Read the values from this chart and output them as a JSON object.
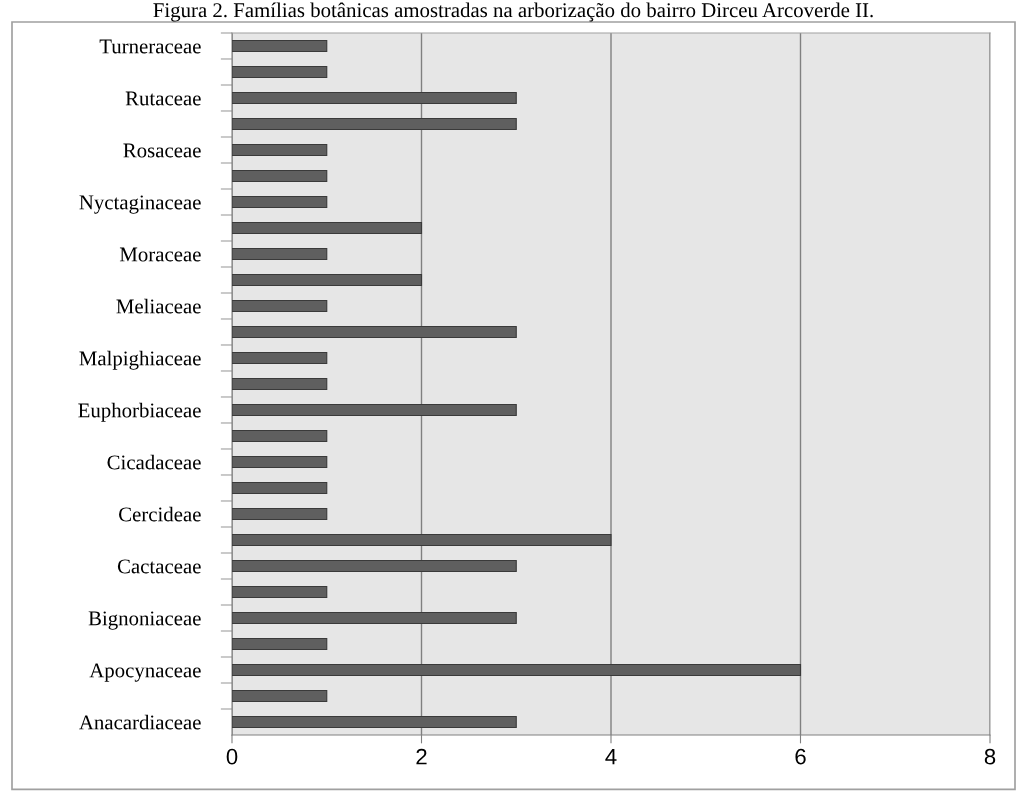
{
  "chart_data": {
    "type": "bar",
    "orientation": "horizontal",
    "title": "Figura 2. Famílias botânicas amostradas na arborização do bairro Dirceu Arcoverde II.",
    "categories": [
      "Turneraceae",
      null,
      "Rutaceae",
      null,
      "Rosaceae",
      null,
      "Nyctaginaceae",
      null,
      "Moraceae",
      null,
      "Meliaceae",
      null,
      "Malpighiaceae",
      null,
      "Euphorbiaceae",
      null,
      "Cicadaceae",
      null,
      "Cercideae",
      null,
      "Cactaceae",
      null,
      "Bignoniaceae",
      null,
      "Apocynaceae",
      null,
      "Anacardiaceae"
    ],
    "values": [
      1,
      1,
      3,
      3,
      1,
      1,
      1,
      2,
      1,
      2,
      1,
      3,
      1,
      1,
      3,
      1,
      1,
      1,
      1,
      4,
      3,
      1,
      3,
      1,
      6,
      1,
      3
    ],
    "color": "#5f5f5f",
    "xlim": [
      0,
      8
    ],
    "xticks": [
      0,
      2,
      4,
      6,
      8
    ],
    "grid": "x",
    "legend": false
  }
}
